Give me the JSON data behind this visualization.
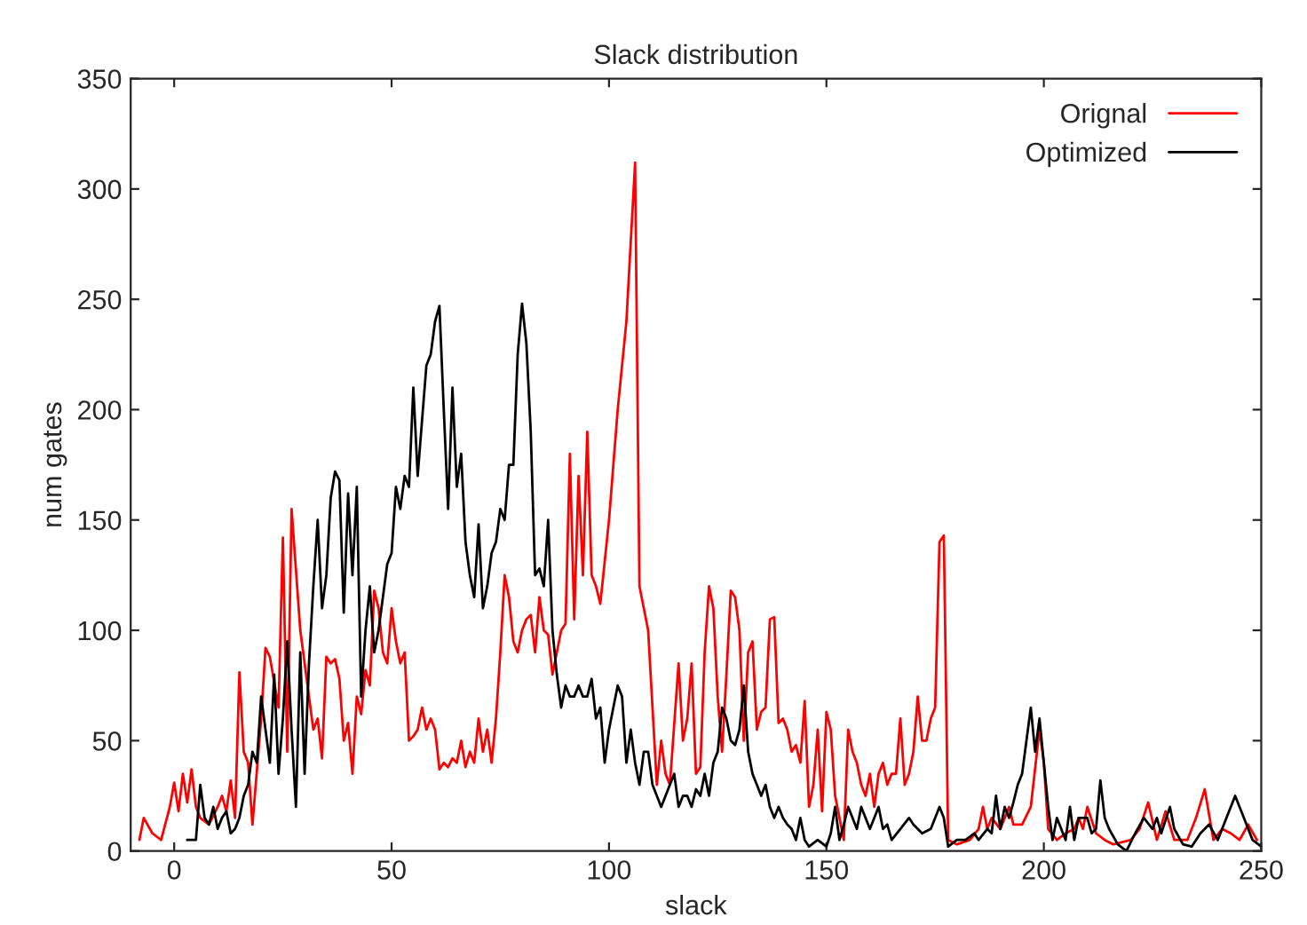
{
  "chart_data": {
    "type": "line",
    "title": "Slack distribution",
    "xlabel": "slack",
    "ylabel": "num gates",
    "xlim": [
      -10,
      250
    ],
    "xticks": [
      0,
      50,
      100,
      150,
      200,
      250
    ],
    "ylim": [
      0,
      350
    ],
    "yticks": [
      0,
      50,
      100,
      150,
      200,
      250,
      300,
      350
    ],
    "grid": false,
    "legend": "top right",
    "marker": "none",
    "line_style": "solid",
    "series": [
      {
        "name": "Orignal",
        "color": "#ff0000",
        "x": [
          -8,
          -7,
          -5,
          -3,
          -1,
          0,
          1,
          2,
          3,
          4,
          5,
          6,
          8,
          10,
          11,
          12,
          13,
          14,
          15,
          16,
          17,
          18,
          20,
          21,
          22,
          24,
          25,
          26,
          27,
          29,
          31,
          32,
          33,
          34,
          35,
          36,
          37,
          38,
          39,
          40,
          41,
          42,
          43,
          44,
          45,
          46,
          47,
          48,
          49,
          50,
          51,
          52,
          53,
          54,
          55,
          56,
          57,
          58,
          59,
          60,
          61,
          62,
          63,
          64,
          65,
          66,
          67,
          68,
          69,
          70,
          71,
          72,
          73,
          74,
          75,
          76,
          77,
          78,
          79,
          80,
          81,
          82,
          83,
          84,
          85,
          86,
          87,
          88,
          89,
          90,
          91,
          92,
          93,
          94,
          95,
          96,
          97,
          98,
          100,
          102,
          104,
          106,
          107,
          109,
          111,
          112,
          113,
          114,
          116,
          117,
          118,
          119,
          120,
          121,
          122,
          123,
          124,
          125,
          126,
          127,
          128,
          129,
          130,
          131,
          132,
          133,
          134,
          135,
          136,
          137,
          138,
          139,
          140,
          141,
          142,
          143,
          144,
          145,
          146,
          147,
          148,
          149,
          150,
          151,
          152,
          153,
          154,
          155,
          156,
          157,
          158,
          159,
          160,
          161,
          162,
          163,
          164,
          165,
          166,
          167,
          168,
          169,
          170,
          171,
          172,
          173,
          174,
          175,
          176,
          177,
          178,
          180,
          183,
          185,
          186,
          187,
          188,
          190,
          192,
          193,
          195,
          197,
          199,
          200,
          201,
          203,
          205,
          207,
          208,
          209,
          210,
          212,
          214,
          216,
          220,
          222,
          224,
          226,
          228,
          230,
          233,
          235,
          237,
          239,
          241,
          243,
          245,
          247,
          249
        ],
        "values": [
          5,
          15,
          8,
          5,
          20,
          31,
          18,
          35,
          22,
          37,
          20,
          15,
          12,
          20,
          25,
          18,
          32,
          15,
          81,
          45,
          40,
          12,
          60,
          92,
          88,
          65,
          142,
          45,
          155,
          100,
          70,
          55,
          60,
          42,
          88,
          85,
          87,
          78,
          50,
          58,
          35,
          70,
          62,
          82,
          75,
          118,
          110,
          90,
          85,
          110,
          95,
          85,
          90,
          50,
          52,
          55,
          65,
          55,
          60,
          55,
          37,
          40,
          38,
          42,
          40,
          50,
          38,
          45,
          40,
          60,
          45,
          55,
          40,
          60,
          90,
          125,
          115,
          95,
          90,
          100,
          105,
          107,
          90,
          115,
          100,
          98,
          80,
          90,
          100,
          103,
          180,
          105,
          170,
          125,
          190,
          125,
          120,
          112,
          150,
          200,
          240,
          312,
          120,
          100,
          30,
          50,
          35,
          30,
          85,
          50,
          60,
          85,
          35,
          38,
          90,
          120,
          110,
          70,
          45,
          80,
          118,
          115,
          100,
          50,
          90,
          95,
          55,
          63,
          65,
          105,
          106,
          58,
          60,
          55,
          45,
          48,
          40,
          68,
          20,
          30,
          55,
          18,
          63,
          55,
          25,
          15,
          5,
          55,
          45,
          40,
          30,
          25,
          35,
          20,
          35,
          40,
          30,
          35,
          35,
          60,
          30,
          35,
          45,
          70,
          50,
          50,
          60,
          65,
          140,
          143,
          5,
          3,
          5,
          10,
          20,
          10,
          15,
          10,
          20,
          12,
          12,
          20,
          55,
          40,
          10,
          5,
          8,
          10,
          15,
          10,
          20,
          8,
          5,
          3,
          5,
          10,
          22,
          5,
          18,
          5,
          5,
          15,
          28,
          5,
          10,
          8,
          5,
          12,
          5
        ]
      },
      {
        "name": "Optimized",
        "color": "#000000",
        "x": [
          3,
          5,
          6,
          7,
          8,
          9,
          10,
          11,
          12,
          13,
          14,
          15,
          16,
          17,
          18,
          19,
          20,
          21,
          22,
          23,
          24,
          25,
          26,
          27,
          28,
          29,
          30,
          31,
          32,
          33,
          34,
          35,
          36,
          37,
          38,
          39,
          40,
          41,
          42,
          43,
          44,
          45,
          46,
          47,
          48,
          49,
          50,
          51,
          52,
          53,
          54,
          55,
          56,
          57,
          58,
          59,
          60,
          61,
          62,
          63,
          64,
          65,
          66,
          67,
          68,
          69,
          70,
          71,
          72,
          73,
          74,
          75,
          76,
          77,
          78,
          79,
          80,
          81,
          82,
          83,
          84,
          85,
          86,
          87,
          88,
          89,
          90,
          91,
          92,
          93,
          94,
          95,
          96,
          97,
          98,
          99,
          100,
          101,
          102,
          103,
          104,
          105,
          106,
          107,
          108,
          109,
          110,
          111,
          112,
          113,
          114,
          115,
          116,
          117,
          118,
          119,
          120,
          121,
          122,
          123,
          124,
          125,
          126,
          127,
          128,
          129,
          130,
          131,
          132,
          133,
          134,
          135,
          136,
          137,
          138,
          139,
          140,
          141,
          142,
          143,
          144,
          145,
          146,
          148,
          150,
          151,
          152,
          153,
          154,
          155,
          156,
          157,
          158,
          160,
          162,
          163,
          164,
          165,
          167,
          169,
          170,
          172,
          174,
          176,
          177,
          178,
          180,
          182,
          184,
          185,
          187,
          188,
          189,
          190,
          191,
          192,
          193,
          194,
          195,
          196,
          197,
          198,
          199,
          200,
          201,
          202,
          203,
          205,
          206,
          207,
          208,
          210,
          211,
          212,
          213,
          214,
          215,
          217,
          219,
          221,
          223,
          225,
          226,
          227,
          229,
          230,
          232,
          234,
          236,
          238,
          240,
          242,
          244,
          246,
          248,
          250
        ],
        "values": [
          5,
          5,
          30,
          15,
          12,
          20,
          10,
          15,
          18,
          8,
          10,
          15,
          25,
          30,
          45,
          40,
          70,
          55,
          40,
          80,
          35,
          60,
          95,
          55,
          20,
          90,
          35,
          85,
          120,
          150,
          110,
          125,
          160,
          172,
          168,
          108,
          162,
          125,
          165,
          70,
          100,
          120,
          90,
          100,
          115,
          130,
          135,
          165,
          155,
          170,
          165,
          210,
          170,
          195,
          220,
          225,
          240,
          247,
          200,
          155,
          210,
          165,
          180,
          140,
          125,
          115,
          148,
          110,
          120,
          135,
          140,
          155,
          150,
          175,
          175,
          225,
          248,
          230,
          190,
          125,
          128,
          120,
          150,
          100,
          80,
          65,
          75,
          70,
          70,
          75,
          70,
          70,
          78,
          60,
          65,
          40,
          55,
          65,
          75,
          70,
          40,
          55,
          40,
          30,
          45,
          45,
          30,
          25,
          20,
          25,
          30,
          35,
          20,
          25,
          25,
          20,
          28,
          25,
          35,
          25,
          40,
          45,
          65,
          60,
          50,
          48,
          55,
          75,
          45,
          35,
          30,
          25,
          30,
          20,
          15,
          20,
          15,
          12,
          10,
          5,
          15,
          5,
          2,
          5,
          2,
          8,
          20,
          5,
          12,
          20,
          15,
          10,
          20,
          10,
          20,
          10,
          12,
          5,
          10,
          15,
          12,
          8,
          10,
          20,
          15,
          2,
          5,
          5,
          8,
          5,
          10,
          8,
          25,
          10,
          20,
          15,
          22,
          30,
          35,
          50,
          65,
          45,
          60,
          40,
          20,
          5,
          15,
          5,
          20,
          5,
          15,
          15,
          8,
          10,
          32,
          15,
          10,
          3,
          0,
          8,
          15,
          10,
          15,
          8,
          20,
          10,
          3,
          2,
          8,
          12,
          5,
          15,
          25,
          15,
          5,
          2
        ]
      }
    ]
  }
}
